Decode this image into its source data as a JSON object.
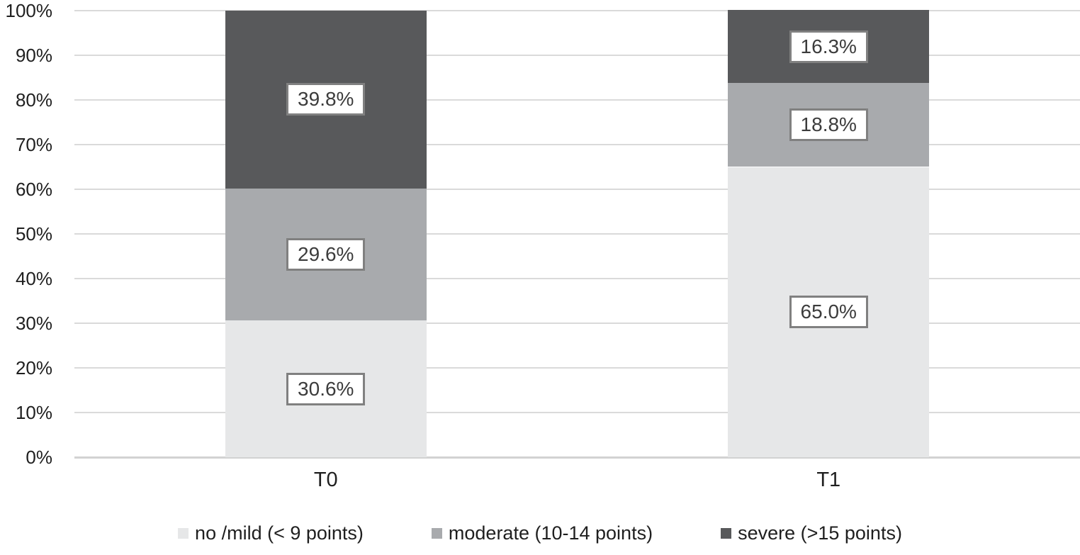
{
  "chart_data": {
    "type": "bar",
    "stacked": true,
    "orientation": "vertical",
    "title": "",
    "xlabel": "",
    "ylabel": "",
    "ylim": [
      0,
      100
    ],
    "grid": true,
    "legend_position": "bottom",
    "categories": [
      "T0",
      "T1"
    ],
    "y_ticks": [
      "0%",
      "10%",
      "20%",
      "30%",
      "40%",
      "50%",
      "60%",
      "70%",
      "80%",
      "90%",
      "100%"
    ],
    "series": [
      {
        "name": "no /mild (< 9 points)",
        "color": "#e6e7e8",
        "values": [
          30.6,
          65.0
        ],
        "labels": [
          "30.6%",
          "65.0%"
        ]
      },
      {
        "name": "moderate (10-14 points)",
        "color": "#a8aaad",
        "values": [
          29.6,
          18.8
        ],
        "labels": [
          "29.6%",
          "18.8%"
        ]
      },
      {
        "name": "severe (>15 points)",
        "color": "#58595b",
        "values": [
          39.8,
          16.3
        ],
        "labels": [
          "39.8%",
          "16.3%"
        ]
      }
    ],
    "style": {
      "gridline_color": "#dadada",
      "baseline_color": "#d2d2d2",
      "value_label_border": "#808080",
      "value_label_bg": "#ffffff",
      "text_color": "#1f1f1f"
    }
  }
}
